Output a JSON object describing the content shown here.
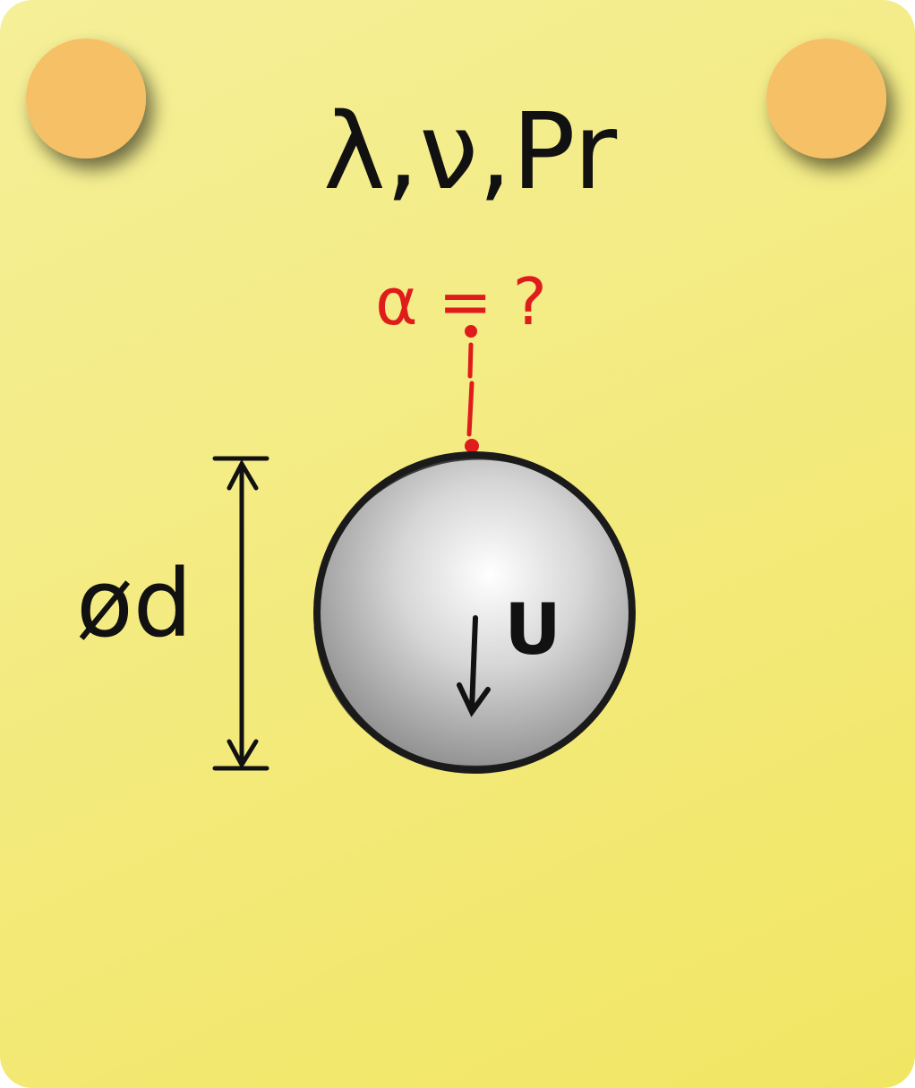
{
  "properties_label": "λ,ν,Pr",
  "unknown_label": "α = ?",
  "diameter_label": "ød",
  "velocity_label": "U",
  "colors": {
    "card_background": "#f3ea7c",
    "pin": "#f6c066",
    "annotation_red": "#e01b1b",
    "ink": "#111111"
  },
  "icons": {
    "pins": "push-pin-icon",
    "velocity_arrow": "arrow-down-icon",
    "dimension_line": "dimension-arrow-icon"
  }
}
